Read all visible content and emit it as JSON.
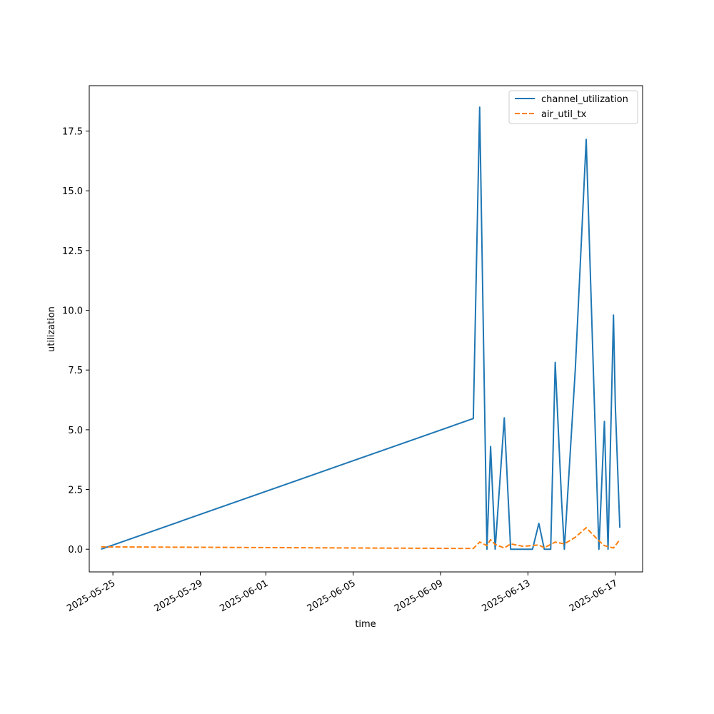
{
  "chart_data": {
    "type": "line",
    "xlabel": "time",
    "ylabel": "utilization",
    "x_type": "date",
    "xlim": [
      "2025-05-23T22:00",
      "2025-06-18T06:00"
    ],
    "ylim": [
      -0.95,
      19.4
    ],
    "x_ticks": [
      "2025-05-25",
      "2025-05-29",
      "2025-06-01",
      "2025-06-05",
      "2025-06-09",
      "2025-06-13",
      "2025-06-17"
    ],
    "y_ticks": [
      0.0,
      2.5,
      5.0,
      7.5,
      10.0,
      12.5,
      15.0,
      17.5
    ],
    "y_tick_labels": [
      "0.0",
      "2.5",
      "5.0",
      "7.5",
      "10.0",
      "12.5",
      "15.0",
      "17.5"
    ],
    "grid": false,
    "legend_position": "top-right",
    "series": [
      {
        "name": "channel_utilization",
        "color": "#1f77b4",
        "dash": "solid",
        "points": [
          [
            "2025-05-24T11:00",
            0.0
          ],
          [
            "2025-06-10T12:00",
            5.47
          ],
          [
            "2025-06-10T19:00",
            18.5
          ],
          [
            "2025-06-11T03:00",
            0.0
          ],
          [
            "2025-06-11T07:00",
            4.3
          ],
          [
            "2025-06-11T12:00",
            0.0
          ],
          [
            "2025-06-11T22:00",
            5.5
          ],
          [
            "2025-06-12T05:00",
            0.0
          ],
          [
            "2025-06-13T05:00",
            0.0
          ],
          [
            "2025-06-13T12:00",
            1.08
          ],
          [
            "2025-06-13T18:00",
            0.0
          ],
          [
            "2025-06-14T01:00",
            0.0
          ],
          [
            "2025-06-14T06:00",
            7.82
          ],
          [
            "2025-06-14T13:00",
            2.0
          ],
          [
            "2025-06-14T16:00",
            0.0
          ],
          [
            "2025-06-15T04:00",
            7.5
          ],
          [
            "2025-06-15T16:00",
            17.15
          ],
          [
            "2025-06-16T06:00",
            0.0
          ],
          [
            "2025-06-16T12:00",
            5.35
          ],
          [
            "2025-06-16T16:00",
            0.0
          ],
          [
            "2025-06-16T22:00",
            9.8
          ],
          [
            "2025-06-17T00:00",
            6.0
          ],
          [
            "2025-06-17T05:00",
            0.9
          ]
        ]
      },
      {
        "name": "air_util_tx",
        "color": "#ff7f0e",
        "dash": "dashed",
        "points": [
          [
            "2025-05-24T11:00",
            0.1
          ],
          [
            "2025-06-10T12:00",
            0.03
          ],
          [
            "2025-06-10T19:00",
            0.3
          ],
          [
            "2025-06-11T03:00",
            0.15
          ],
          [
            "2025-06-11T07:00",
            0.4
          ],
          [
            "2025-06-11T12:00",
            0.2
          ],
          [
            "2025-06-11T22:00",
            0.05
          ],
          [
            "2025-06-12T05:00",
            0.22
          ],
          [
            "2025-06-12T19:00",
            0.12
          ],
          [
            "2025-06-13T12:00",
            0.18
          ],
          [
            "2025-06-13T18:00",
            0.06
          ],
          [
            "2025-06-14T06:00",
            0.3
          ],
          [
            "2025-06-14T16:00",
            0.22
          ],
          [
            "2025-06-15T04:00",
            0.5
          ],
          [
            "2025-06-15T16:00",
            0.9
          ],
          [
            "2025-06-16T06:00",
            0.35
          ],
          [
            "2025-06-16T12:00",
            0.15
          ],
          [
            "2025-06-16T22:00",
            0.05
          ],
          [
            "2025-06-17T05:00",
            0.4
          ]
        ]
      }
    ]
  }
}
